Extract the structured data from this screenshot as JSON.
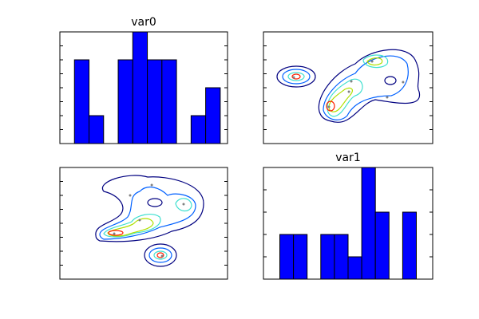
{
  "chart_data": [
    {
      "type": "histogram",
      "title": "var0",
      "bins": [
        0,
        1,
        2,
        3,
        4,
        5,
        6,
        7,
        8,
        9,
        10
      ],
      "counts": [
        3,
        1,
        0,
        3,
        4,
        3,
        3,
        0,
        1,
        2
      ],
      "color": "#0000ff",
      "xlim": [
        -1,
        10.5
      ],
      "ylim": [
        0,
        4
      ],
      "yticks": [
        0,
        0.5,
        1,
        1.5,
        2,
        2.5,
        3,
        3.5,
        4
      ]
    },
    {
      "type": "scatter",
      "x": [
        17.9,
        38.7,
        50.5,
        51.9,
        64.2,
        73.1,
        82.5
      ],
      "y": [
        59.3,
        32.9,
        46.4,
        55.7,
        73.6,
        41.4,
        55
      ],
      "color": "#808080",
      "xlim": [
        0,
        100
      ],
      "ylim": [
        0,
        100
      ],
      "yticks": [
        12.5,
        25,
        37.5,
        50,
        62.5,
        75,
        87.5
      ]
    },
    {
      "type": "scatter",
      "x": [
        32.4,
        47.6,
        54.8,
        61,
        73.8,
        41.9
      ],
      "y": [
        40.7,
        52.9,
        84.3,
        20.7,
        67.1,
        75
      ],
      "color": "#808080",
      "xlim": [
        0,
        100
      ],
      "ylim": [
        0,
        100
      ],
      "yticks": [
        12.5,
        25,
        37.5,
        50,
        62.5,
        75,
        87.5
      ]
    },
    {
      "type": "histogram",
      "title": "var1",
      "bins": [
        0,
        1,
        2,
        3,
        4,
        5,
        6,
        7,
        8,
        9,
        10
      ],
      "counts": [
        2,
        2,
        0,
        2,
        2,
        1,
        5,
        3,
        0,
        3
      ],
      "color": "#0000ff",
      "xlim": [
        -1.2,
        11.2
      ],
      "ylim": [
        0,
        5
      ],
      "yticks": [
        0,
        1,
        2,
        3,
        4,
        5
      ]
    }
  ]
}
